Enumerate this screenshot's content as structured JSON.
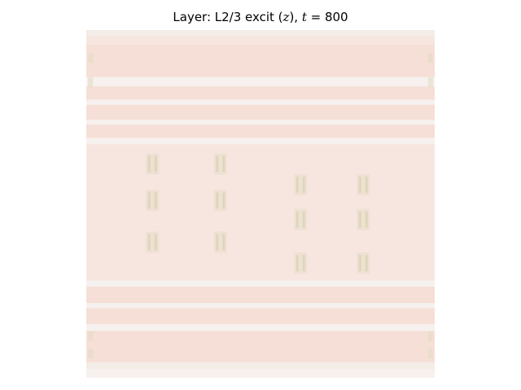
{
  "chart_data": {
    "type": "heatmap",
    "title": {
      "prefix": "Layer: L2/3 excit (",
      "var": "z",
      "mid": "), ",
      "tvar": "t",
      "eq": " = 800"
    },
    "axes_visible": false,
    "colors": {
      "band_light": "#f4ece6",
      "band_pink": "#f6dfd6",
      "band_pale": "#f7e6e0",
      "band_white": "#f6f1ee",
      "spot": "#e3dcc4",
      "spot_dark": "#d9d4b4"
    },
    "rows": [
      {
        "from": 0.0,
        "to": 0.018,
        "level": "band_light"
      },
      {
        "from": 0.018,
        "to": 0.042,
        "level": "band_pale"
      },
      {
        "from": 0.042,
        "to": 0.135,
        "level": "band_pink"
      },
      {
        "from": 0.135,
        "to": 0.162,
        "level": "band_white"
      },
      {
        "from": 0.162,
        "to": 0.2,
        "level": "band_pink"
      },
      {
        "from": 0.2,
        "to": 0.215,
        "level": "band_white"
      },
      {
        "from": 0.215,
        "to": 0.258,
        "level": "band_pink"
      },
      {
        "from": 0.258,
        "to": 0.272,
        "level": "band_white"
      },
      {
        "from": 0.272,
        "to": 0.31,
        "level": "band_pink"
      },
      {
        "from": 0.31,
        "to": 0.328,
        "level": "band_white"
      },
      {
        "from": 0.328,
        "to": 0.72,
        "level": "band_pale"
      },
      {
        "from": 0.72,
        "to": 0.738,
        "level": "band_white"
      },
      {
        "from": 0.738,
        "to": 0.785,
        "level": "band_pink"
      },
      {
        "from": 0.785,
        "to": 0.8,
        "level": "band_white"
      },
      {
        "from": 0.8,
        "to": 0.845,
        "level": "band_pink"
      },
      {
        "from": 0.845,
        "to": 0.865,
        "level": "band_white"
      },
      {
        "from": 0.865,
        "to": 0.955,
        "level": "band_pink"
      },
      {
        "from": 0.955,
        "to": 0.975,
        "level": "band_light"
      },
      {
        "from": 0.975,
        "to": 1.0,
        "level": "band_white"
      }
    ],
    "spots": [
      {
        "x": 0.19,
        "y": 0.385
      },
      {
        "x": 0.385,
        "y": 0.385
      },
      {
        "x": 0.19,
        "y": 0.49
      },
      {
        "x": 0.385,
        "y": 0.49
      },
      {
        "x": 0.19,
        "y": 0.61
      },
      {
        "x": 0.385,
        "y": 0.61
      },
      {
        "x": 0.615,
        "y": 0.445
      },
      {
        "x": 0.795,
        "y": 0.445
      },
      {
        "x": 0.615,
        "y": 0.545
      },
      {
        "x": 0.795,
        "y": 0.545
      },
      {
        "x": 0.615,
        "y": 0.67
      },
      {
        "x": 0.795,
        "y": 0.67
      }
    ],
    "edge_marks": [
      {
        "x": 0.012,
        "y": 0.08
      },
      {
        "x": 0.012,
        "y": 0.15
      },
      {
        "x": 0.988,
        "y": 0.08
      },
      {
        "x": 0.988,
        "y": 0.15
      },
      {
        "x": 0.012,
        "y": 0.88
      },
      {
        "x": 0.012,
        "y": 0.93
      },
      {
        "x": 0.988,
        "y": 0.88
      },
      {
        "x": 0.988,
        "y": 0.93
      }
    ]
  }
}
